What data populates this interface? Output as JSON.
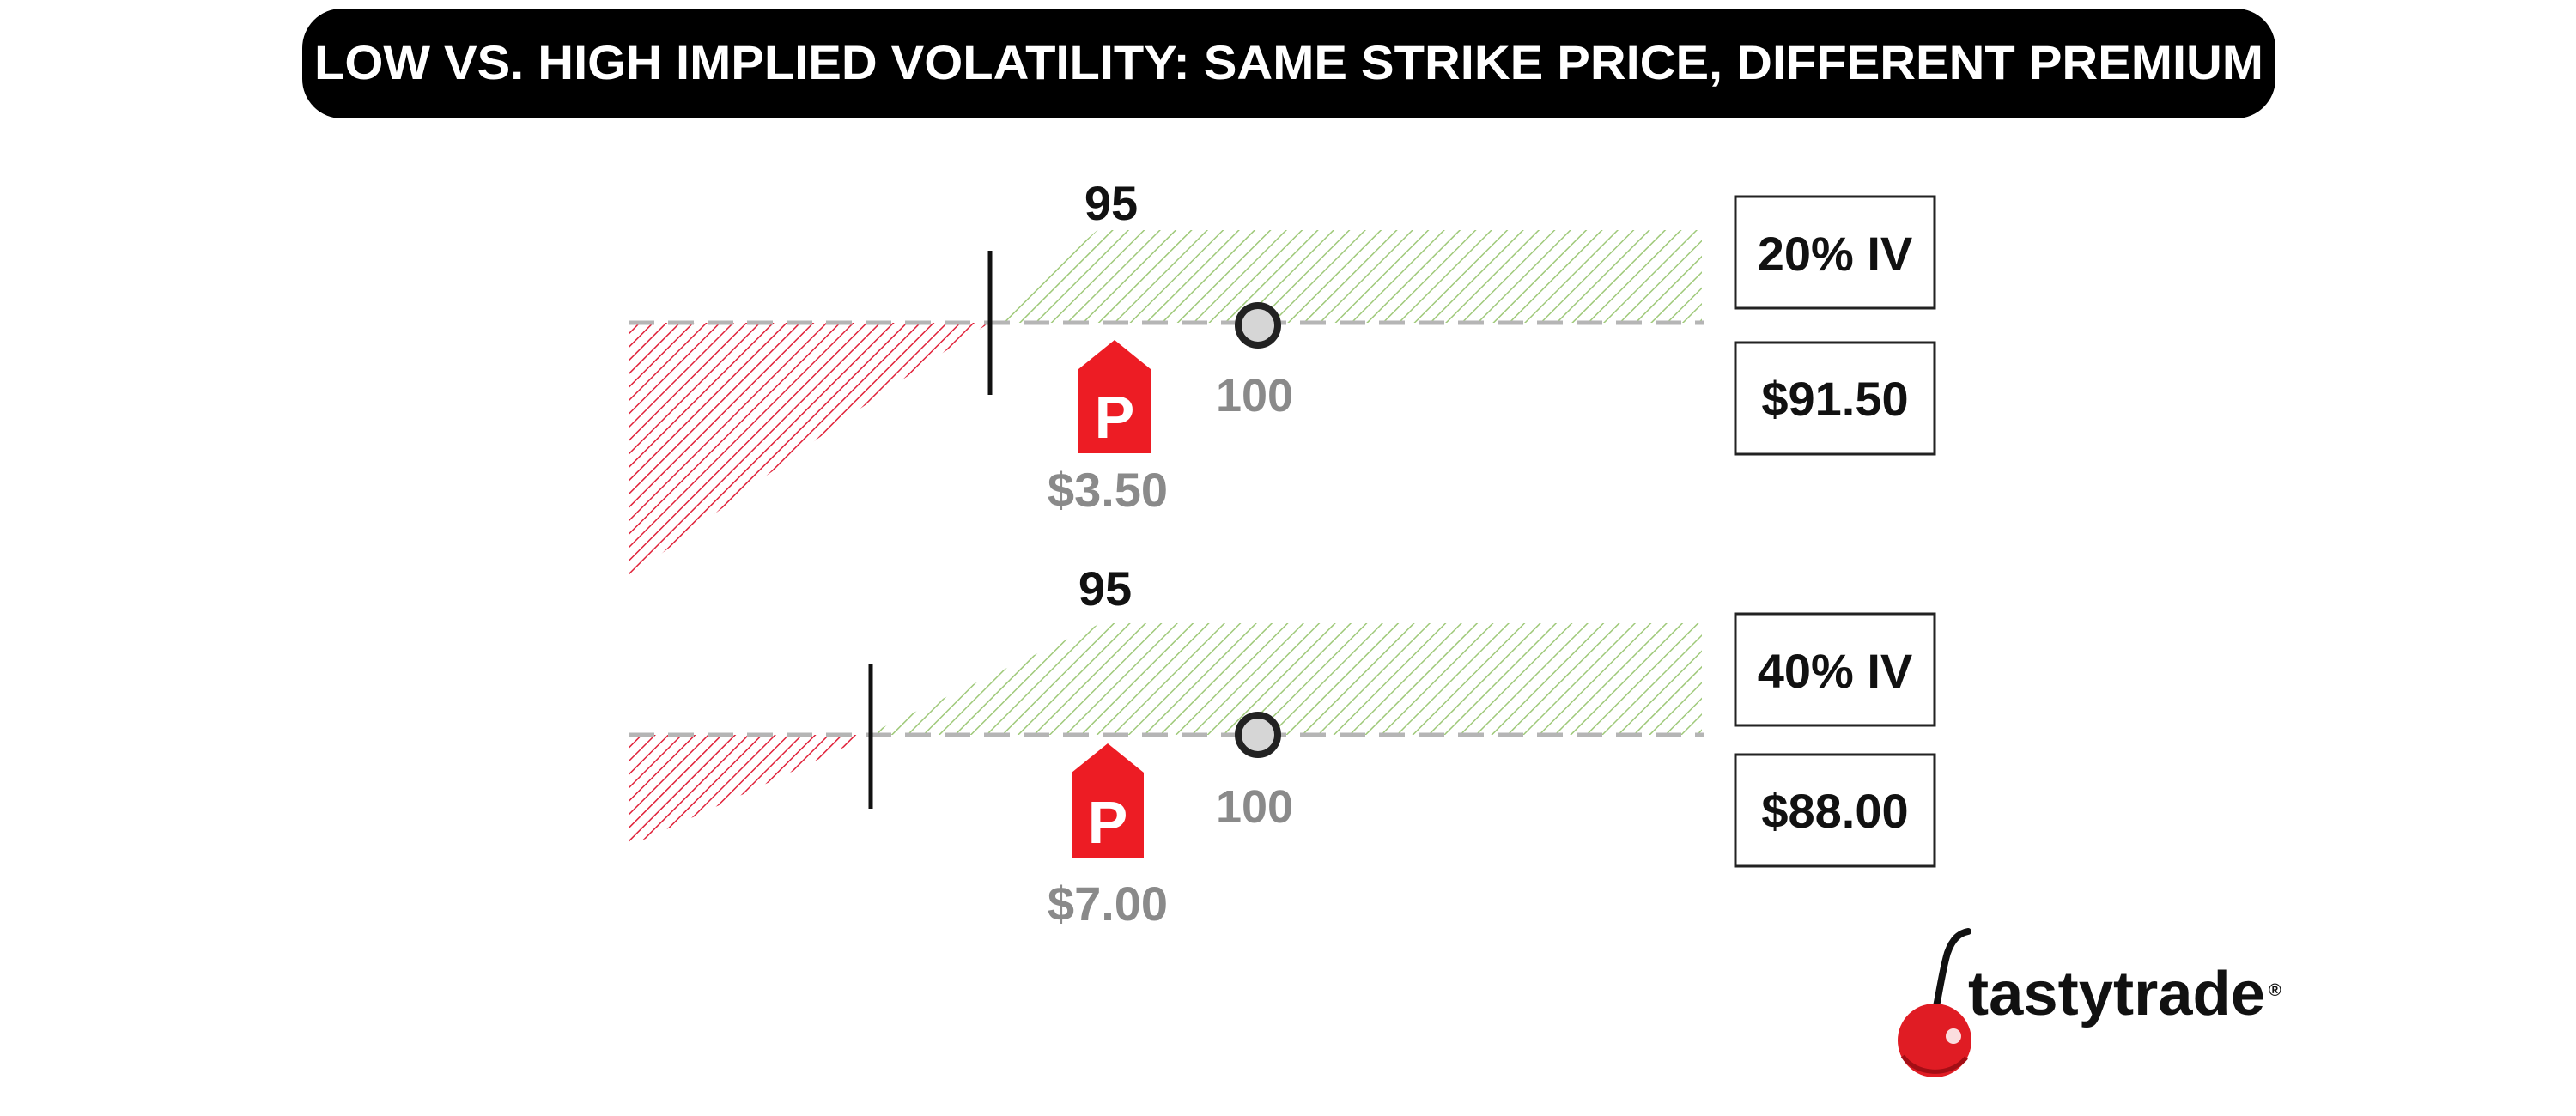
{
  "title": "LOW VS. HIGH IMPLIED VOLATILITY: SAME STRIKE PRICE, DIFFERENT PREMIUM",
  "colors": {
    "title_bg": "#000000",
    "title_text": "#ffffff",
    "profit_hatch": "#9fc97a",
    "loss_hatch": "#e0223a",
    "premium_tag": "#ed1c24",
    "price_label": "#8a8a8a",
    "marker_fill": "#d6d6d6",
    "baseline": "#b5b5b5",
    "brand_text": "#111111"
  },
  "scenarios": [
    {
      "strike_label": "95",
      "underlying_label": "100",
      "premium_icon": "P",
      "premium_label": "$3.50",
      "iv_label": "20% IV",
      "breakeven_label": "$91.50"
    },
    {
      "strike_label": "95",
      "underlying_label": "100",
      "premium_icon": "P",
      "premium_label": "$7.00",
      "iv_label": "40% IV",
      "breakeven_label": "$88.00"
    }
  ],
  "brand": {
    "name": "tastytrade",
    "mark": "®",
    "icon": "cherry-icon"
  }
}
